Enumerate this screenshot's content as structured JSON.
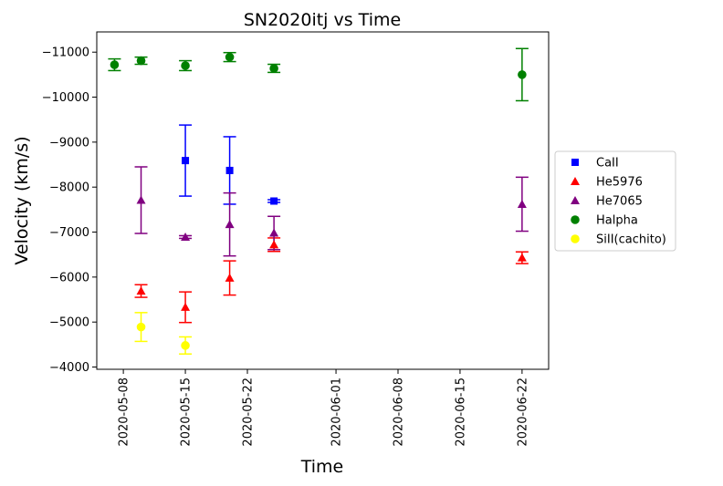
{
  "chart_data": {
    "type": "scatter",
    "title": "SN2020itj vs Time",
    "xlabel": "Time",
    "ylabel": "Velocity (km/s)",
    "x_axis": {
      "type": "date",
      "range": [
        "2020-05-05",
        "2020-06-25"
      ],
      "ticks": [
        "2020-05-08",
        "2020-05-15",
        "2020-05-22",
        "2020-06-01",
        "2020-06-08",
        "2020-06-15",
        "2020-06-22"
      ]
    },
    "y_axis": {
      "inverted": true,
      "range": [
        -3950,
        -11450
      ],
      "ticks": [
        -4000,
        -5000,
        -6000,
        -7000,
        -8000,
        -9000,
        -10000,
        -11000
      ],
      "tick_labels": [
        "−4000",
        "−5000",
        "−6000",
        "−7000",
        "−8000",
        "−9000",
        "−10000",
        "−11000"
      ]
    },
    "grid": false,
    "legend_position": "right, outside plot",
    "series": [
      {
        "name": "CaII",
        "marker": "square",
        "color": "#0000ff",
        "points": [
          {
            "x": "2020-05-15",
            "y": -8590,
            "err": 790
          },
          {
            "x": "2020-05-20",
            "y": -8370,
            "err": 750
          },
          {
            "x": "2020-05-25",
            "y": -7690,
            "err": 30
          }
        ]
      },
      {
        "name": "He5976",
        "marker": "triangle",
        "color": "#ff0000",
        "points": [
          {
            "x": "2020-05-10",
            "y": -5690,
            "err": 140
          },
          {
            "x": "2020-05-15",
            "y": -5330,
            "err": 340
          },
          {
            "x": "2020-05-20",
            "y": -5980,
            "err": 380
          },
          {
            "x": "2020-05-25",
            "y": -6720,
            "err": 150
          },
          {
            "x": "2020-06-22",
            "y": -6430,
            "err": 130
          }
        ]
      },
      {
        "name": "He7065",
        "marker": "triangle",
        "color": "#800080",
        "points": [
          {
            "x": "2020-05-10",
            "y": -7710,
            "err": 740
          },
          {
            "x": "2020-05-15",
            "y": -6890,
            "err": 30
          },
          {
            "x": "2020-05-20",
            "y": -7170,
            "err": 700
          },
          {
            "x": "2020-05-25",
            "y": -6980,
            "err": 370
          },
          {
            "x": "2020-06-22",
            "y": -7620,
            "err": 600
          }
        ]
      },
      {
        "name": "Halpha",
        "marker": "circle",
        "color": "#008000",
        "points": [
          {
            "x": "2020-05-07",
            "y": -10720,
            "err": 130
          },
          {
            "x": "2020-05-10",
            "y": -10810,
            "err": 80
          },
          {
            "x": "2020-05-15",
            "y": -10700,
            "err": 110
          },
          {
            "x": "2020-05-20",
            "y": -10890,
            "err": 100
          },
          {
            "x": "2020-05-25",
            "y": -10640,
            "err": 90
          },
          {
            "x": "2020-06-22",
            "y": -10500,
            "err": 580
          }
        ]
      },
      {
        "name": "SiII(cachito)",
        "marker": "circle",
        "color": "#ffff00",
        "points": [
          {
            "x": "2020-05-10",
            "y": -4890,
            "err": 320
          },
          {
            "x": "2020-05-15",
            "y": -4480,
            "err": 190
          }
        ]
      }
    ]
  }
}
